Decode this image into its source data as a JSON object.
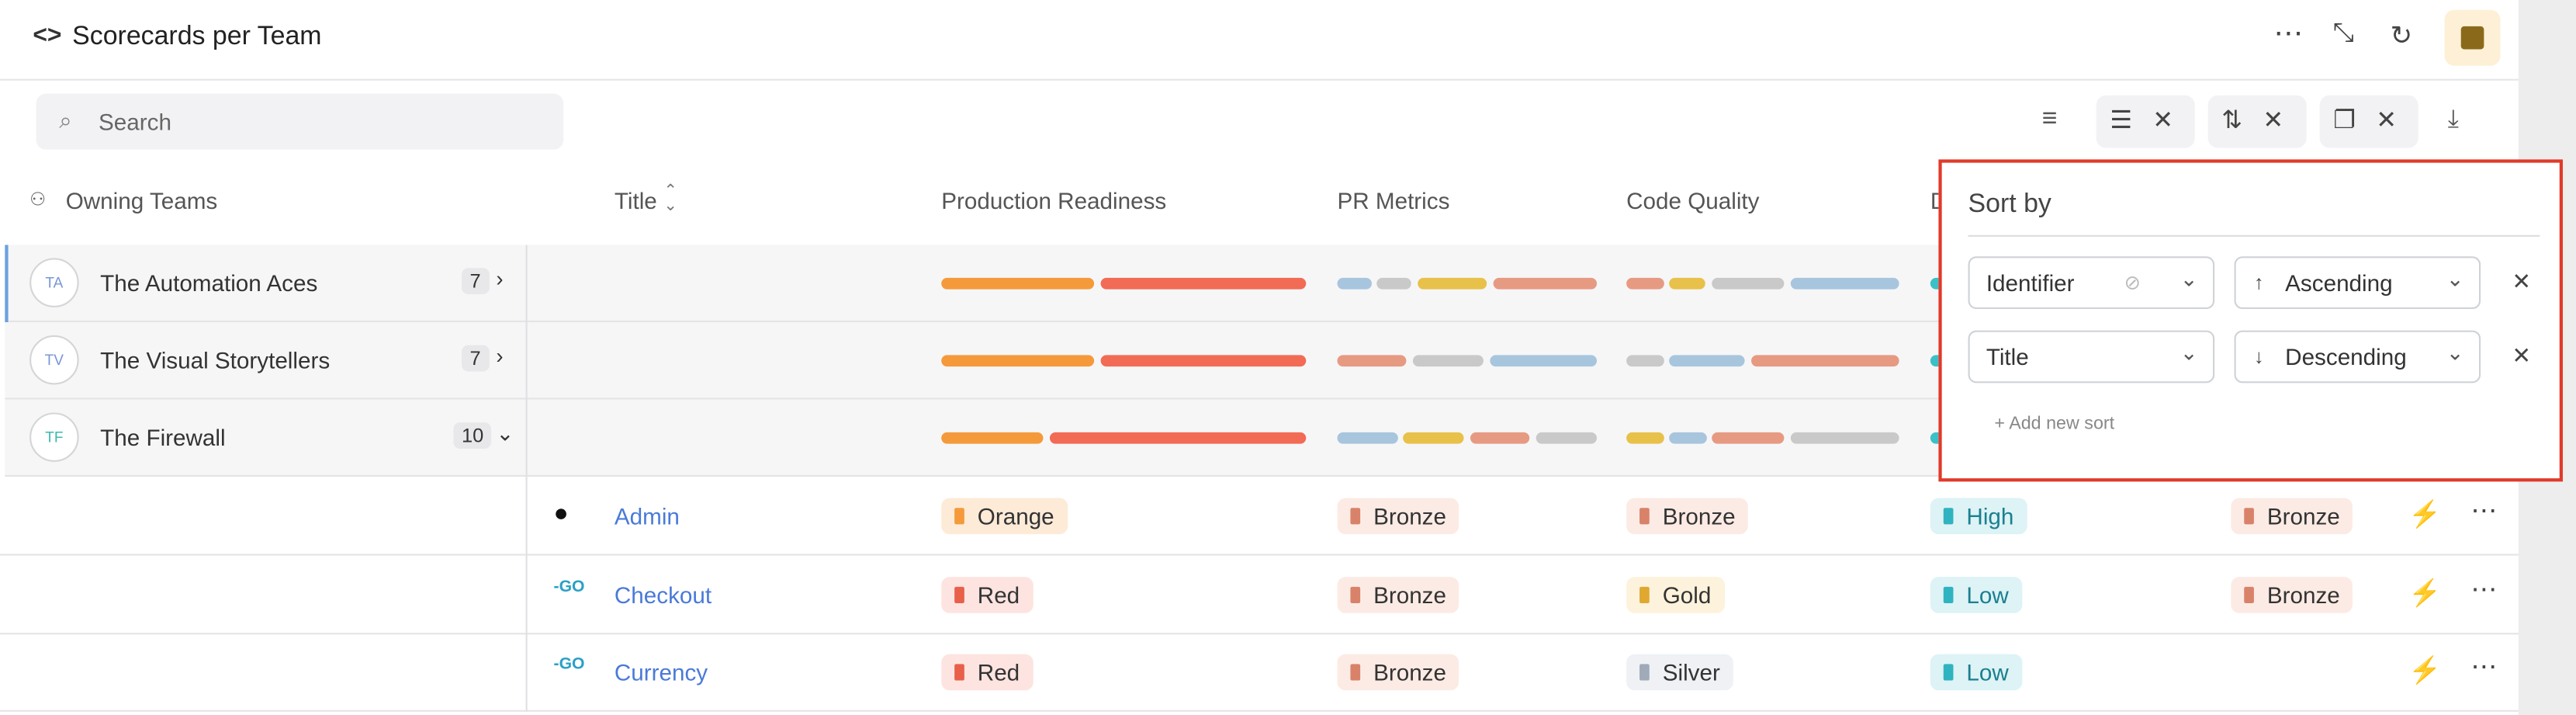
{
  "header": {
    "title": "Scorecards per Team"
  },
  "search": {
    "placeholder": "Search"
  },
  "columns": [
    "Owning Teams",
    "Title",
    "Production Readiness",
    "PR Metrics",
    "Code Quality"
  ],
  "groups": [
    {
      "initials": "TA",
      "name": "The Automation Aces",
      "count": "7"
    },
    {
      "initials": "TV",
      "name": "The Visual Storytellers",
      "count": "7"
    },
    {
      "initials": "TF",
      "name": "The Firewall",
      "count": "10"
    }
  ],
  "rows": [
    {
      "title": "Admin",
      "cells": [
        "Orange",
        "Bronze",
        "Bronze",
        "High",
        "Bronze"
      ]
    },
    {
      "title": "Checkout",
      "cells": [
        "Red",
        "Bronze",
        "Gold",
        "Low",
        "Bronze"
      ]
    },
    {
      "title": "Currency",
      "cells": [
        "Red",
        "Bronze",
        "Silver",
        "Low"
      ]
    }
  ],
  "sort_panel": {
    "title": "Sort by",
    "rules": [
      {
        "field": "Identifier",
        "direction": "Ascending"
      },
      {
        "field": "Title",
        "direction": "Descending"
      }
    ],
    "add": "+ Add new sort"
  }
}
